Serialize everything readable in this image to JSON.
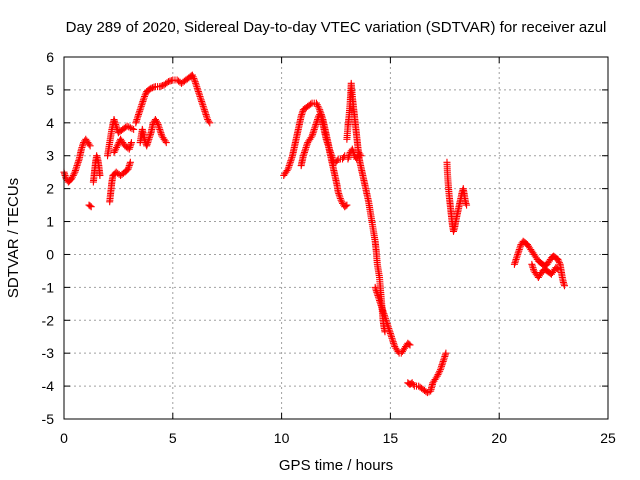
{
  "chart_data": {
    "type": "scatter",
    "title": "Day 289 of 2020, Sidereal Day-to-day VTEC variation (SDTVAR) for receiver azul",
    "xlabel": "GPS time / hours",
    "ylabel": "SDTVAR / TECUs",
    "xlim": [
      0,
      25
    ],
    "ylim": [
      -5,
      6
    ],
    "xticks": [
      "0",
      "5",
      "10",
      "15",
      "20",
      "25"
    ],
    "yticks": [
      "-5",
      "-4",
      "-3",
      "-2",
      "-1",
      "0",
      "1",
      "2",
      "3",
      "4",
      "5",
      "6"
    ],
    "grid": true,
    "marker": "+",
    "series": [
      {
        "name": "SDTVAR",
        "color": "#ff0000",
        "segments": [
          [
            [
              0.0,
              2.5
            ],
            [
              0.1,
              2.3
            ],
            [
              0.2,
              2.2
            ],
            [
              0.35,
              2.3
            ],
            [
              0.5,
              2.5
            ],
            [
              0.6,
              2.7
            ],
            [
              0.7,
              2.9
            ],
            [
              0.8,
              3.2
            ],
            [
              0.9,
              3.4
            ],
            [
              1.0,
              3.5
            ],
            [
              1.1,
              3.4
            ],
            [
              1.2,
              3.3
            ]
          ],
          [
            [
              1.15,
              1.5
            ],
            [
              1.25,
              1.45
            ]
          ],
          [
            [
              1.35,
              2.2
            ],
            [
              1.4,
              2.5
            ],
            [
              1.45,
              2.8
            ],
            [
              1.5,
              3.0
            ],
            [
              1.55,
              2.9
            ],
            [
              1.6,
              2.7
            ],
            [
              1.65,
              2.4
            ]
          ],
          [
            [
              2.1,
              1.6
            ],
            [
              2.15,
              1.9
            ],
            [
              2.2,
              2.2
            ],
            [
              2.25,
              2.4
            ],
            [
              2.4,
              2.5
            ],
            [
              2.6,
              2.4
            ],
            [
              2.8,
              2.5
            ],
            [
              2.95,
              2.6
            ],
            [
              3.05,
              2.8
            ]
          ],
          [
            [
              2.0,
              3.0
            ],
            [
              2.1,
              3.4
            ],
            [
              2.2,
              3.8
            ],
            [
              2.3,
              4.1
            ],
            [
              2.4,
              3.9
            ],
            [
              2.5,
              3.7
            ],
            [
              2.7,
              3.8
            ],
            [
              2.9,
              3.9
            ],
            [
              3.05,
              3.85
            ],
            [
              3.2,
              3.8
            ]
          ],
          [
            [
              2.3,
              3.1
            ],
            [
              2.45,
              3.3
            ],
            [
              2.6,
              3.5
            ],
            [
              2.8,
              3.3
            ],
            [
              3.0,
              3.2
            ],
            [
              3.1,
              3.4
            ]
          ],
          [
            [
              3.3,
              4.0
            ],
            [
              3.4,
              4.2
            ],
            [
              3.5,
              4.4
            ],
            [
              3.6,
              4.6
            ],
            [
              3.7,
              4.8
            ],
            [
              3.8,
              4.95
            ],
            [
              3.9,
              5.0
            ],
            [
              4.0,
              5.05
            ],
            [
              4.2,
              5.1
            ],
            [
              4.4,
              5.1
            ],
            [
              4.6,
              5.15
            ],
            [
              4.8,
              5.25
            ],
            [
              5.0,
              5.3
            ],
            [
              5.2,
              5.3
            ],
            [
              5.4,
              5.2
            ],
            [
              5.6,
              5.3
            ],
            [
              5.8,
              5.4
            ],
            [
              5.9,
              5.45
            ],
            [
              6.0,
              5.3
            ],
            [
              6.1,
              5.1
            ],
            [
              6.2,
              4.9
            ],
            [
              6.3,
              4.7
            ],
            [
              6.4,
              4.5
            ],
            [
              6.5,
              4.3
            ],
            [
              6.6,
              4.1
            ],
            [
              6.7,
              4.0
            ]
          ],
          [
            [
              3.5,
              3.4
            ],
            [
              3.6,
              3.8
            ],
            [
              3.7,
              3.5
            ],
            [
              3.8,
              3.3
            ],
            [
              3.9,
              3.5
            ],
            [
              4.0,
              3.7
            ],
            [
              4.1,
              4.0
            ],
            [
              4.2,
              4.1
            ],
            [
              4.3,
              4.0
            ],
            [
              4.4,
              3.8
            ],
            [
              4.5,
              3.6
            ],
            [
              4.6,
              3.5
            ],
            [
              4.7,
              3.4
            ]
          ],
          [
            [
              10.1,
              2.4
            ],
            [
              10.2,
              2.5
            ],
            [
              10.3,
              2.6
            ],
            [
              10.4,
              2.8
            ],
            [
              10.5,
              3.0
            ],
            [
              10.6,
              3.3
            ],
            [
              10.7,
              3.6
            ],
            [
              10.8,
              3.9
            ],
            [
              10.9,
              4.2
            ],
            [
              11.0,
              4.4
            ],
            [
              11.2,
              4.5
            ],
            [
              11.4,
              4.6
            ],
            [
              11.6,
              4.6
            ],
            [
              11.75,
              4.4
            ],
            [
              11.85,
              4.1
            ],
            [
              11.95,
              3.8
            ],
            [
              12.05,
              3.5
            ],
            [
              12.15,
              3.3
            ],
            [
              12.25,
              3.0
            ],
            [
              12.35,
              2.7
            ],
            [
              12.45,
              2.4
            ],
            [
              12.55,
              2.1
            ],
            [
              12.6,
              1.9
            ],
            [
              12.7,
              1.7
            ],
            [
              12.8,
              1.55
            ],
            [
              12.9,
              1.45
            ],
            [
              13.0,
              1.5
            ]
          ],
          [
            [
              10.9,
              2.7
            ],
            [
              11.0,
              3.0
            ],
            [
              11.1,
              3.2
            ],
            [
              11.2,
              3.4
            ],
            [
              11.3,
              3.5
            ],
            [
              11.4,
              3.6
            ],
            [
              11.5,
              3.8
            ],
            [
              11.6,
              4.0
            ],
            [
              11.7,
              4.2
            ],
            [
              11.8,
              4.3
            ],
            [
              11.9,
              4.1
            ],
            [
              12.0,
              3.8
            ],
            [
              12.1,
              3.5
            ],
            [
              12.2,
              3.2
            ],
            [
              12.3,
              3.0
            ],
            [
              12.4,
              2.8
            ],
            [
              12.5,
              2.8
            ],
            [
              12.6,
              2.9
            ],
            [
              12.8,
              2.9
            ],
            [
              12.9,
              3.0
            ]
          ],
          [
            [
              13.0,
              3.5
            ],
            [
              13.05,
              3.9
            ],
            [
              13.1,
              4.2
            ],
            [
              13.15,
              4.6
            ],
            [
              13.2,
              5.2
            ],
            [
              13.25,
              4.8
            ],
            [
              13.3,
              4.5
            ],
            [
              13.35,
              4.2
            ],
            [
              13.4,
              3.9
            ],
            [
              13.45,
              3.6
            ],
            [
              13.5,
              3.3
            ],
            [
              13.55,
              3.0
            ],
            [
              13.6,
              2.8
            ],
            [
              13.7,
              2.5
            ],
            [
              13.8,
              2.2
            ],
            [
              13.9,
              1.9
            ],
            [
              14.0,
              1.6
            ],
            [
              14.1,
              1.2
            ],
            [
              14.2,
              0.8
            ],
            [
              14.3,
              0.4
            ],
            [
              14.35,
              0.1
            ],
            [
              14.4,
              -0.3
            ],
            [
              14.5,
              -0.7
            ],
            [
              14.55,
              -1.1
            ],
            [
              14.6,
              -1.5
            ],
            [
              14.65,
              -1.9
            ],
            [
              14.7,
              -2.2
            ],
            [
              14.75,
              -2.35
            ]
          ],
          [
            [
              13.05,
              2.9
            ],
            [
              13.15,
              3.1
            ],
            [
              13.25,
              3.2
            ],
            [
              13.35,
              3.0
            ],
            [
              13.45,
              2.9
            ],
            [
              13.55,
              3.1
            ],
            [
              13.65,
              3.0
            ]
          ],
          [
            [
              14.3,
              -1.0
            ],
            [
              14.4,
              -1.2
            ],
            [
              14.5,
              -1.4
            ],
            [
              14.6,
              -1.6
            ],
            [
              14.7,
              -1.8
            ],
            [
              14.8,
              -2.0
            ],
            [
              14.9,
              -2.2
            ],
            [
              15.0,
              -2.4
            ],
            [
              15.1,
              -2.6
            ],
            [
              15.2,
              -2.8
            ],
            [
              15.3,
              -2.9
            ],
            [
              15.4,
              -3.0
            ],
            [
              15.5,
              -3.0
            ],
            [
              15.6,
              -2.9
            ],
            [
              15.7,
              -2.8
            ],
            [
              15.8,
              -2.7
            ],
            [
              15.9,
              -2.75
            ]
          ],
          [
            [
              15.8,
              -3.9
            ],
            [
              15.9,
              -3.95
            ],
            [
              16.0,
              -3.9
            ],
            [
              16.1,
              -4.0
            ],
            [
              16.3,
              -4.0
            ],
            [
              16.5,
              -4.1
            ],
            [
              16.7,
              -4.2
            ],
            [
              16.85,
              -4.15
            ],
            [
              16.95,
              -3.9
            ],
            [
              17.05,
              -3.8
            ],
            [
              17.15,
              -3.7
            ],
            [
              17.3,
              -3.5
            ],
            [
              17.4,
              -3.3
            ],
            [
              17.5,
              -3.1
            ],
            [
              17.55,
              -3.0
            ]
          ],
          [
            [
              17.6,
              2.8
            ],
            [
              17.62,
              2.5
            ],
            [
              17.65,
              2.2
            ],
            [
              17.7,
              1.8
            ],
            [
              17.75,
              1.5
            ],
            [
              17.8,
              1.2
            ],
            [
              17.85,
              0.9
            ],
            [
              17.9,
              0.7
            ],
            [
              17.95,
              0.8
            ],
            [
              18.0,
              1.0
            ],
            [
              18.1,
              1.3
            ],
            [
              18.2,
              1.6
            ],
            [
              18.3,
              1.9
            ],
            [
              18.35,
              2.0
            ],
            [
              18.4,
              1.8
            ],
            [
              18.45,
              1.6
            ],
            [
              18.5,
              1.5
            ]
          ],
          [
            [
              20.7,
              -0.3
            ],
            [
              20.8,
              -0.1
            ],
            [
              20.9,
              0.1
            ],
            [
              21.0,
              0.3
            ],
            [
              21.1,
              0.4
            ],
            [
              21.2,
              0.35
            ],
            [
              21.3,
              0.3
            ],
            [
              21.4,
              0.2
            ],
            [
              21.5,
              0.1
            ],
            [
              21.6,
              0.0
            ],
            [
              21.7,
              -0.1
            ],
            [
              21.8,
              -0.2
            ],
            [
              21.9,
              -0.25
            ],
            [
              22.0,
              -0.3
            ],
            [
              22.1,
              -0.35
            ],
            [
              22.2,
              -0.3
            ],
            [
              22.3,
              -0.2
            ],
            [
              22.4,
              -0.1
            ],
            [
              22.5,
              -0.05
            ],
            [
              22.6,
              -0.1
            ],
            [
              22.7,
              -0.15
            ],
            [
              22.8,
              -0.3
            ],
            [
              22.85,
              -0.5
            ],
            [
              22.9,
              -0.7
            ],
            [
              22.95,
              -0.85
            ],
            [
              23.0,
              -0.95
            ]
          ],
          [
            [
              21.5,
              -0.3
            ],
            [
              21.6,
              -0.5
            ],
            [
              21.7,
              -0.6
            ],
            [
              21.8,
              -0.7
            ],
            [
              21.9,
              -0.6
            ],
            [
              22.0,
              -0.5
            ],
            [
              22.1,
              -0.45
            ],
            [
              22.2,
              -0.5
            ],
            [
              22.3,
              -0.55
            ],
            [
              22.4,
              -0.6
            ],
            [
              22.5,
              -0.5
            ],
            [
              22.6,
              -0.4
            ],
            [
              22.7,
              -0.45
            ]
          ]
        ]
      }
    ]
  }
}
